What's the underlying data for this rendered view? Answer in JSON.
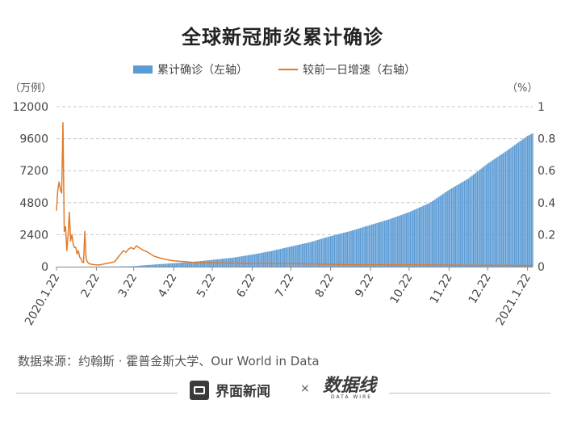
{
  "chart_data": {
    "type": "bar+line",
    "title": "全球新冠肺炎累计确诊",
    "legend": {
      "position": "top",
      "items": [
        {
          "label": "累计确诊（左轴）",
          "color": "#5b9bd5"
        },
        {
          "label": "较前一日增速（右轴）",
          "color": "#e07b2a"
        }
      ]
    },
    "y_left": {
      "unit_label": "（万例）",
      "range": [
        0,
        12000
      ],
      "ticks": [
        "0",
        "2400",
        "4800",
        "7200",
        "9600",
        "12000"
      ]
    },
    "y_right": {
      "unit_label": "（%）",
      "range": [
        0,
        1
      ],
      "ticks": [
        "0",
        "0.2",
        "0.4",
        "0.6",
        "0.8",
        "1"
      ]
    },
    "x_ticks": [
      {
        "label": "2020.1.22",
        "day": 0
      },
      {
        "label": "2.22",
        "day": 31
      },
      {
        "label": "3.22",
        "day": 60
      },
      {
        "label": "4.22",
        "day": 91
      },
      {
        "label": "5.22",
        "day": 121
      },
      {
        "label": "6.22",
        "day": 152
      },
      {
        "label": "7.22",
        "day": 182
      },
      {
        "label": "8.22",
        "day": 213
      },
      {
        "label": "9.22",
        "day": 244
      },
      {
        "label": "10.22",
        "day": 274
      },
      {
        "label": "11.22",
        "day": 305
      },
      {
        "label": "12.22",
        "day": 335
      },
      {
        "label": "2021.1.22",
        "day": 366
      }
    ],
    "x_range": [
      0,
      370
    ],
    "series": [
      {
        "name": "累计确诊（左轴）",
        "type": "bar",
        "axis": "left",
        "color": "#5b9bd5",
        "points": [
          [
            0,
            0.06
          ],
          [
            10,
            0.7
          ],
          [
            20,
            4.5
          ],
          [
            31,
            7.8
          ],
          [
            45,
            12
          ],
          [
            60,
            33
          ],
          [
            70,
            120
          ],
          [
            91,
            262
          ],
          [
            106,
            357
          ],
          [
            121,
            513
          ],
          [
            137,
            672
          ],
          [
            152,
            905
          ],
          [
            167,
            1175
          ],
          [
            182,
            1510
          ],
          [
            197,
            1835
          ],
          [
            213,
            2290
          ],
          [
            228,
            2660
          ],
          [
            244,
            3130
          ],
          [
            259,
            3570
          ],
          [
            274,
            4090
          ],
          [
            290,
            4780
          ],
          [
            305,
            5760
          ],
          [
            320,
            6610
          ],
          [
            335,
            7730
          ],
          [
            350,
            8700
          ],
          [
            366,
            9810
          ],
          [
            370,
            10000
          ]
        ]
      },
      {
        "name": "较前一日增速（右轴）",
        "type": "line",
        "axis": "right",
        "color": "#e07b2a",
        "points": [
          [
            0,
            0.35
          ],
          [
            1,
            0.48
          ],
          [
            2,
            0.53
          ],
          [
            3,
            0.48
          ],
          [
            4,
            0.46
          ],
          [
            5,
            0.9
          ],
          [
            6,
            0.22
          ],
          [
            7,
            0.25
          ],
          [
            8,
            0.1
          ],
          [
            9,
            0.2
          ],
          [
            10,
            0.34
          ],
          [
            11,
            0.16
          ],
          [
            12,
            0.2
          ],
          [
            13,
            0.14
          ],
          [
            14,
            0.12
          ],
          [
            15,
            0.12
          ],
          [
            16,
            0.08
          ],
          [
            17,
            0.1
          ],
          [
            18,
            0.06
          ],
          [
            19,
            0.05
          ],
          [
            20,
            0.03
          ],
          [
            21,
            0.025
          ],
          [
            22,
            0.22
          ],
          [
            23,
            0.05
          ],
          [
            24,
            0.03
          ],
          [
            25,
            0.02
          ],
          [
            27,
            0.015
          ],
          [
            30,
            0.012
          ],
          [
            33,
            0.01
          ],
          [
            36,
            0.015
          ],
          [
            39,
            0.02
          ],
          [
            42,
            0.025
          ],
          [
            45,
            0.03
          ],
          [
            48,
            0.06
          ],
          [
            50,
            0.08
          ],
          [
            52,
            0.1
          ],
          [
            54,
            0.09
          ],
          [
            56,
            0.11
          ],
          [
            58,
            0.12
          ],
          [
            60,
            0.11
          ],
          [
            62,
            0.13
          ],
          [
            64,
            0.12
          ],
          [
            66,
            0.11
          ],
          [
            68,
            0.1
          ],
          [
            70,
            0.095
          ],
          [
            73,
            0.08
          ],
          [
            76,
            0.065
          ],
          [
            80,
            0.055
          ],
          [
            85,
            0.045
          ],
          [
            90,
            0.038
          ],
          [
            95,
            0.034
          ],
          [
            105,
            0.028
          ],
          [
            120,
            0.024
          ],
          [
            140,
            0.022
          ],
          [
            160,
            0.02
          ],
          [
            190,
            0.018
          ],
          [
            230,
            0.012
          ],
          [
            280,
            0.011
          ],
          [
            320,
            0.009
          ],
          [
            350,
            0.008
          ],
          [
            370,
            0.007
          ]
        ]
      }
    ]
  },
  "footer": {
    "source": "数据来源：约翰斯 · 霍普金斯大学、Our World in Data",
    "brand_name": "界面新闻",
    "times": "×",
    "logo2_main": "数据线",
    "logo2_sub": "DATA WIRE"
  }
}
